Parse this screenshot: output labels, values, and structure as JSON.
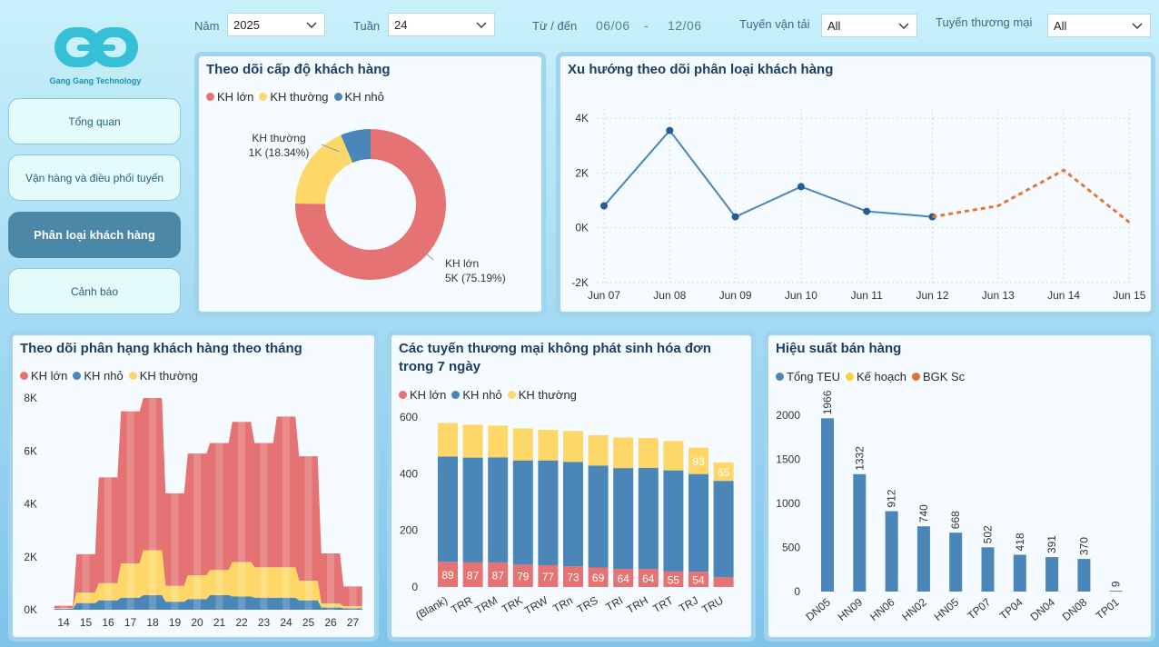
{
  "brand": {
    "name": "Gang Gang Technology"
  },
  "nav": {
    "items": [
      {
        "label": "Tổng quan",
        "active": false
      },
      {
        "label": "Vận hàng và điều phối tuyến",
        "active": false
      },
      {
        "label": "Phân loại khách hàng",
        "active": true
      },
      {
        "label": "Cảnh báo",
        "active": false
      }
    ]
  },
  "filters": {
    "year_label": "Năm",
    "year_value": "2025",
    "week_label": "Tuần",
    "week_value": "24",
    "range_label": "Từ / đến",
    "date_from": "06/06",
    "date_sep": "-",
    "date_to": "12/06",
    "transport_label": "Tuyến vận tải",
    "transport_value": "All",
    "trade_label": "Tuyến thương mại",
    "trade_value": "All"
  },
  "colors": {
    "large": "#e57373",
    "normal": "#fdd868",
    "small": "#4a86b8",
    "plan": "#f7d23e",
    "bgk": "#e07134",
    "trend": "#4a86b8",
    "forecast": "#e8763a"
  },
  "donut": {
    "title": "Theo dõi cấp độ khách hàng",
    "legend": [
      "KH lớn",
      "KH thường",
      "KH nhỏ"
    ],
    "label_normal_name": "KH thường",
    "label_normal_value": "1K (18.34%)",
    "label_large_name": "KH lớn",
    "label_large_value": "5K (75.19%)",
    "chart_data": {
      "type": "pie",
      "slices": [
        {
          "name": "KH lớn",
          "percent": 75.19
        },
        {
          "name": "KH thường",
          "percent": 18.34
        },
        {
          "name": "KH nhỏ",
          "percent": 6.47
        }
      ]
    }
  },
  "trend": {
    "title": "Xu hướng theo dõi phân loại khách hàng",
    "chart_data": {
      "type": "line",
      "categories": [
        "Jun 07",
        "Jun 08",
        "Jun 09",
        "Jun 10",
        "Jun 11",
        "Jun 12",
        "Jun 13",
        "Jun 14",
        "Jun 15"
      ],
      "yticks": [
        "-2K",
        "0K",
        "2K",
        "4K"
      ],
      "ylim": [
        -2000,
        4000
      ],
      "series": [
        {
          "values": [
            800,
            3550,
            400,
            1500,
            600,
            400,
            null,
            null,
            null
          ]
        },
        {
          "values": [
            null,
            null,
            null,
            null,
            null,
            400,
            800,
            2100,
            200
          ]
        }
      ]
    }
  },
  "monthly": {
    "title": "Theo dõi phân hạng khách hàng theo tháng",
    "legend": [
      "KH lớn",
      "KH nhỏ",
      "KH thường"
    ],
    "chart_data": {
      "type": "area",
      "x": [
        "14",
        "15",
        "16",
        "17",
        "18",
        "19",
        "20",
        "21",
        "22",
        "23",
        "24",
        "25",
        "26",
        "27"
      ],
      "yticks": [
        "0K",
        "2K",
        "4K",
        "6K",
        "8K"
      ],
      "ylim": [
        0,
        8000
      ],
      "series": [
        {
          "name": "KH nhỏ",
          "values": [
            40,
            250,
            350,
            450,
            550,
            300,
            400,
            550,
            500,
            450,
            450,
            350,
            80,
            50
          ]
        },
        {
          "name": "KH thường",
          "values": [
            20,
            400,
            650,
            1300,
            1700,
            600,
            900,
            950,
            1300,
            1150,
            1150,
            750,
            150,
            80
          ]
        },
        {
          "name": "KH lớn",
          "values": [
            90,
            1450,
            4000,
            5750,
            5750,
            3500,
            4600,
            4800,
            5300,
            4700,
            5700,
            4700,
            1900,
            750
          ]
        }
      ]
    }
  },
  "routes": {
    "title": "Các tuyến thương mại không phát sinh hóa đơn trong 7 ngày",
    "legend": [
      "KH lớn",
      "KH nhỏ",
      "KH thường"
    ],
    "chart_data": {
      "type": "bar",
      "categories": [
        "(Blank)",
        "TRR",
        "TRM",
        "TRK",
        "TRW",
        "TRn",
        "TRS",
        "TRI",
        "TRH",
        "TRT",
        "TRJ",
        "TRU"
      ],
      "yticks": [
        "0",
        "200",
        "400",
        "600"
      ],
      "ylim": [
        0,
        600
      ],
      "series": [
        {
          "name": "KH lớn",
          "values": [
            89,
            87,
            87,
            79,
            77,
            73,
            69,
            64,
            64,
            55,
            54,
            35
          ]
        },
        {
          "name": "KH nhỏ",
          "values": [
            372,
            370,
            371,
            368,
            370,
            369,
            360,
            356,
            357,
            357,
            345,
            340
          ]
        },
        {
          "name": "KH thường",
          "values": [
            118,
            116,
            112,
            113,
            108,
            109,
            107,
            108,
            105,
            104,
            93,
            65
          ]
        }
      ],
      "data_labels_large": [
        "89",
        "87",
        "87",
        "79",
        "77",
        "73",
        "69",
        "64",
        "64",
        "55",
        "54",
        ""
      ],
      "data_labels_normal": [
        "",
        "",
        "",
        "",
        "",
        "",
        "",
        "",
        "",
        "",
        "93",
        "65"
      ]
    }
  },
  "sales": {
    "title": "Hiệu suất bán hàng",
    "legend": [
      "Tổng TEU",
      "Kế hoạch",
      "BGK Sc"
    ],
    "chart_data": {
      "type": "bar",
      "categories": [
        "DN05",
        "HN09",
        "HN06",
        "HN02",
        "HN05",
        "TP07",
        "TP04",
        "DN04",
        "DN08",
        "TP01"
      ],
      "values": [
        1966,
        1332,
        912,
        740,
        668,
        502,
        418,
        391,
        370,
        9
      ],
      "yticks": [
        "0",
        "500",
        "1000",
        "1500",
        "2000"
      ],
      "ylim": [
        0,
        2000
      ]
    }
  }
}
